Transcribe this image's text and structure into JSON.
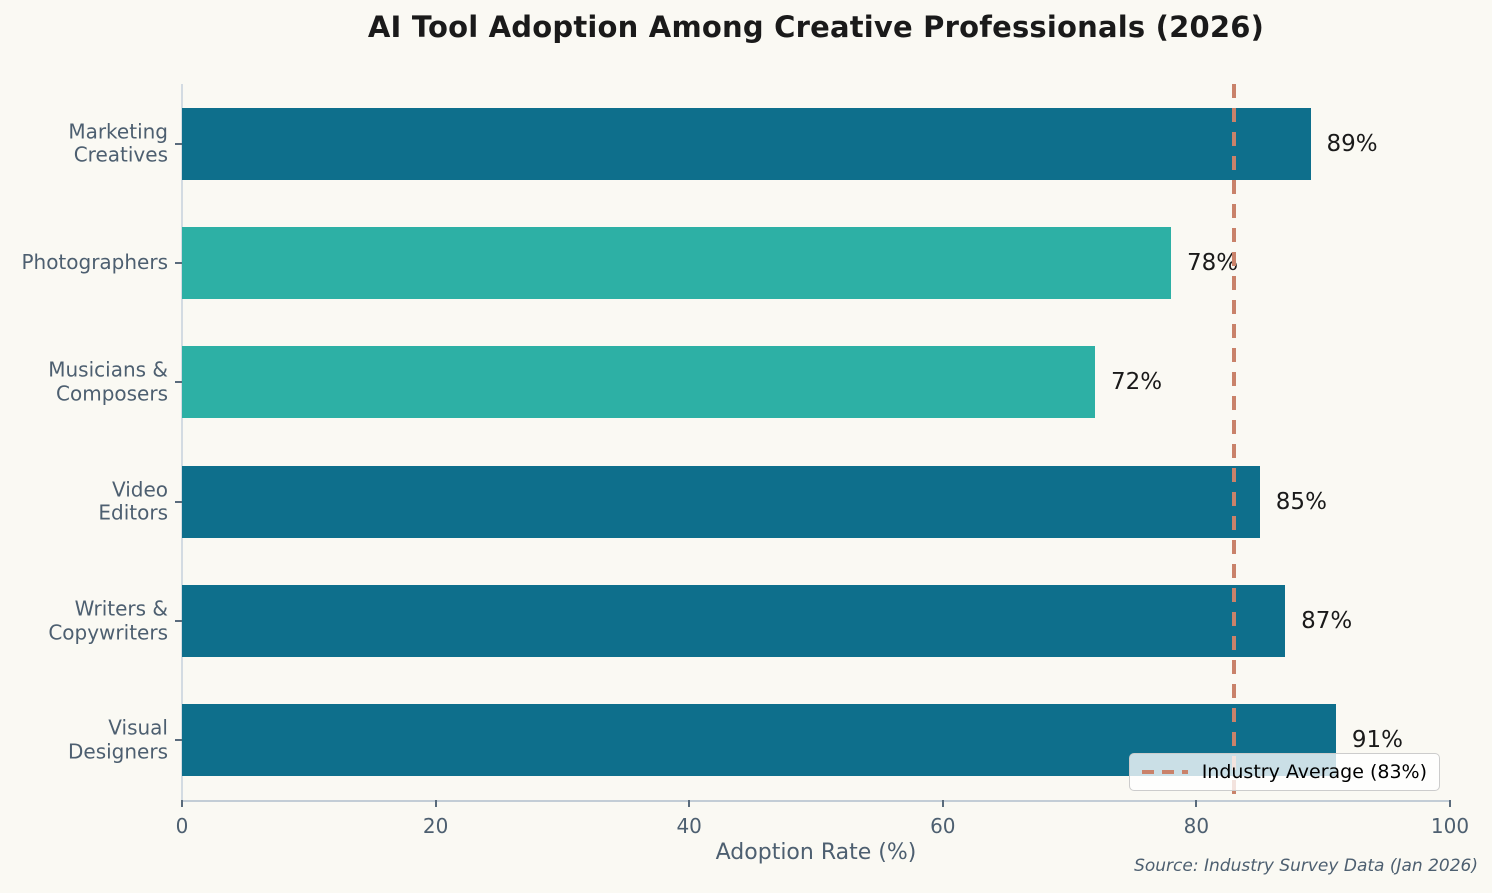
{
  "title": "AI Tool Adoption Among Creative Professionals (2026)",
  "source_note": "Source: Industry Survey Data (Jan 2026)",
  "chart_data": {
    "type": "bar",
    "orientation": "horizontal",
    "title": "AI Tool Adoption Among Creative Professionals (2026)",
    "categories": [
      "Marketing Creatives",
      "Photographers",
      "Musicians & Composers",
      "Video Editors",
      "Writers & Copywriters",
      "Visual Designers"
    ],
    "category_display": [
      "Marketing\nCreatives",
      "Photographers",
      "Musicians &\nComposers",
      "Video\nEditors",
      "Writers &\nCopywriters",
      "Visual\nDesigners"
    ],
    "values": [
      89,
      78,
      72,
      85,
      87,
      91
    ],
    "value_labels": [
      "89%",
      "78%",
      "72%",
      "85%",
      "87%",
      "91%"
    ],
    "xlabel": "Adoption Rate (%)",
    "ylabel": "",
    "xlim": [
      0,
      100
    ],
    "xticks": [
      0,
      20,
      40,
      60,
      80,
      100
    ],
    "grid": false,
    "legend": {
      "position": "lower right",
      "entries": [
        "Industry Average (83%)"
      ]
    },
    "reference_line": {
      "value": 83,
      "label": "Industry Average (83%)",
      "style": "dashed",
      "color": "#c9826a"
    },
    "colors": {
      "above_average_bar": "#0e6f8c",
      "below_average_bar": "#2db0a5",
      "background": "#faf9f3",
      "label_text": "#4d5f70",
      "value_text": "#1a1a1a"
    }
  }
}
